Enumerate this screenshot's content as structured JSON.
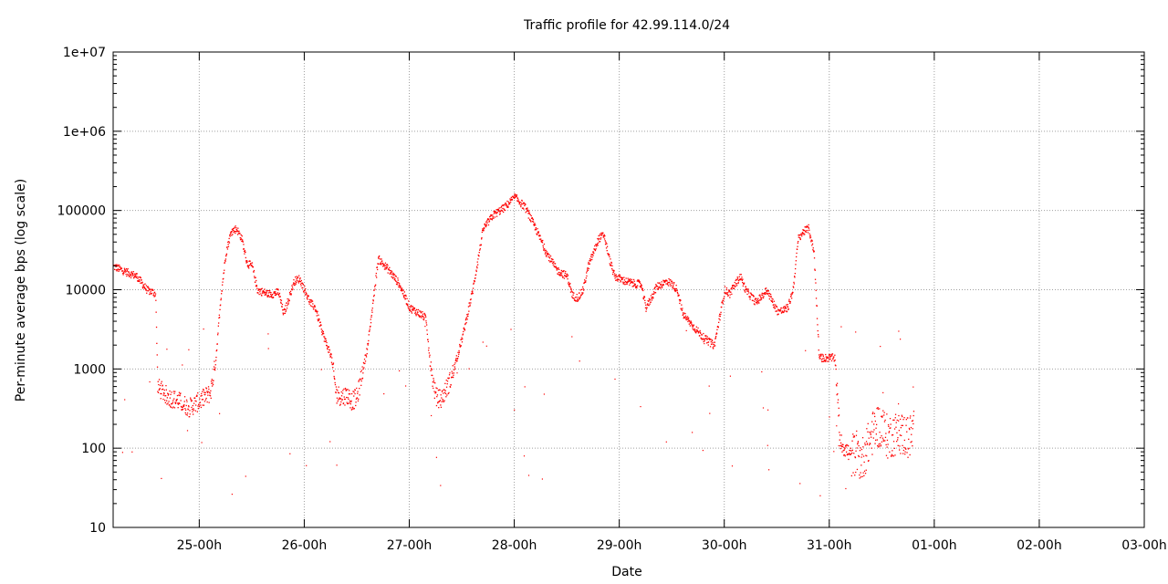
{
  "chart_data": {
    "type": "scatter",
    "title": "Traffic profile for 42.99.114.0/24",
    "xlabel": "Date",
    "ylabel": "Per-minute average bps (log scale)",
    "yscale": "log",
    "ylim": [
      10,
      10000000
    ],
    "xlim": [
      -0.82,
      9.0
    ],
    "x_ticks": [
      "25-00h",
      "26-00h",
      "27-00h",
      "28-00h",
      "29-00h",
      "30-00h",
      "31-00h",
      "01-00h",
      "02-00h",
      "03-00h"
    ],
    "y_ticks": [
      "10",
      "100",
      "1000",
      "10000",
      "100000",
      "1e+06",
      "1e+07"
    ],
    "grid": true,
    "marker_color": "#ff0000",
    "series": [
      {
        "x": [
          -0.82,
          -0.7,
          -0.6,
          -0.5,
          -0.45,
          -0.42,
          -0.4,
          -0.3,
          -0.2,
          -0.1,
          0.0,
          0.1,
          0.15,
          0.2,
          0.25,
          0.3,
          0.35,
          0.4,
          0.45,
          0.5,
          0.55,
          0.6,
          0.65,
          0.7,
          0.75,
          0.8,
          0.85,
          0.9,
          0.95,
          1.0,
          1.05,
          1.1,
          1.15,
          1.2,
          1.25,
          1.3,
          1.35,
          1.4,
          1.45,
          1.5,
          1.6,
          1.7,
          1.8,
          1.9,
          2.0,
          2.05,
          2.1,
          2.15,
          2.2,
          2.25,
          2.3,
          2.4,
          2.5,
          2.6,
          2.7,
          2.8,
          2.9,
          3.0,
          3.05,
          3.1,
          3.2,
          3.3,
          3.4,
          3.5,
          3.55,
          3.6,
          3.65,
          3.7,
          3.75,
          3.8,
          3.85,
          3.9,
          3.95,
          4.0,
          4.05,
          4.1,
          4.15,
          4.2,
          4.25,
          4.3,
          4.35,
          4.4,
          4.45,
          4.5,
          4.55,
          4.6,
          4.7,
          4.8,
          4.9,
          5.0,
          5.05,
          5.1,
          5.15,
          5.2,
          5.3,
          5.4,
          5.5,
          5.55,
          5.6,
          5.65,
          5.7,
          5.75,
          5.8,
          5.85,
          5.9,
          5.95,
          6.0,
          6.05,
          6.1,
          6.15,
          6.2,
          6.25,
          6.3,
          6.35,
          6.4,
          6.45,
          6.5,
          6.55,
          6.6,
          6.65,
          6.7,
          6.75,
          6.8
        ],
        "y": [
          20000,
          17000,
          15000,
          10000,
          9500,
          9000,
          600,
          450,
          400,
          330,
          400,
          500,
          1200,
          8000,
          30000,
          55000,
          60000,
          45000,
          22000,
          20000,
          10000,
          9500,
          9000,
          9000,
          9500,
          5000,
          8000,
          13000,
          14000,
          10000,
          7000,
          6000,
          3500,
          2200,
          1500,
          500,
          450,
          480,
          400,
          450,
          2000,
          25000,
          18000,
          12000,
          6000,
          5500,
          5000,
          4500,
          1000,
          450,
          420,
          800,
          2500,
          10000,
          60000,
          90000,
          110000,
          150000,
          130000,
          110000,
          60000,
          30000,
          18000,
          15000,
          8500,
          8000,
          10000,
          20000,
          30000,
          45000,
          50000,
          25000,
          15000,
          14000,
          13000,
          12500,
          12000,
          12000,
          6000,
          8000,
          11000,
          12000,
          13000,
          12000,
          10000,
          5000,
          3500,
          2500,
          2000,
          10000,
          9000,
          12000,
          15000,
          10000,
          7000,
          10000,
          5500,
          5500,
          6000,
          10000,
          45000,
          55000,
          60000,
          30000,
          1400,
          1400,
          1400,
          1400,
          120,
          100,
          80,
          90,
          70,
          100,
          150,
          200,
          180,
          140,
          150,
          160,
          150,
          140,
          160
        ]
      }
    ]
  }
}
